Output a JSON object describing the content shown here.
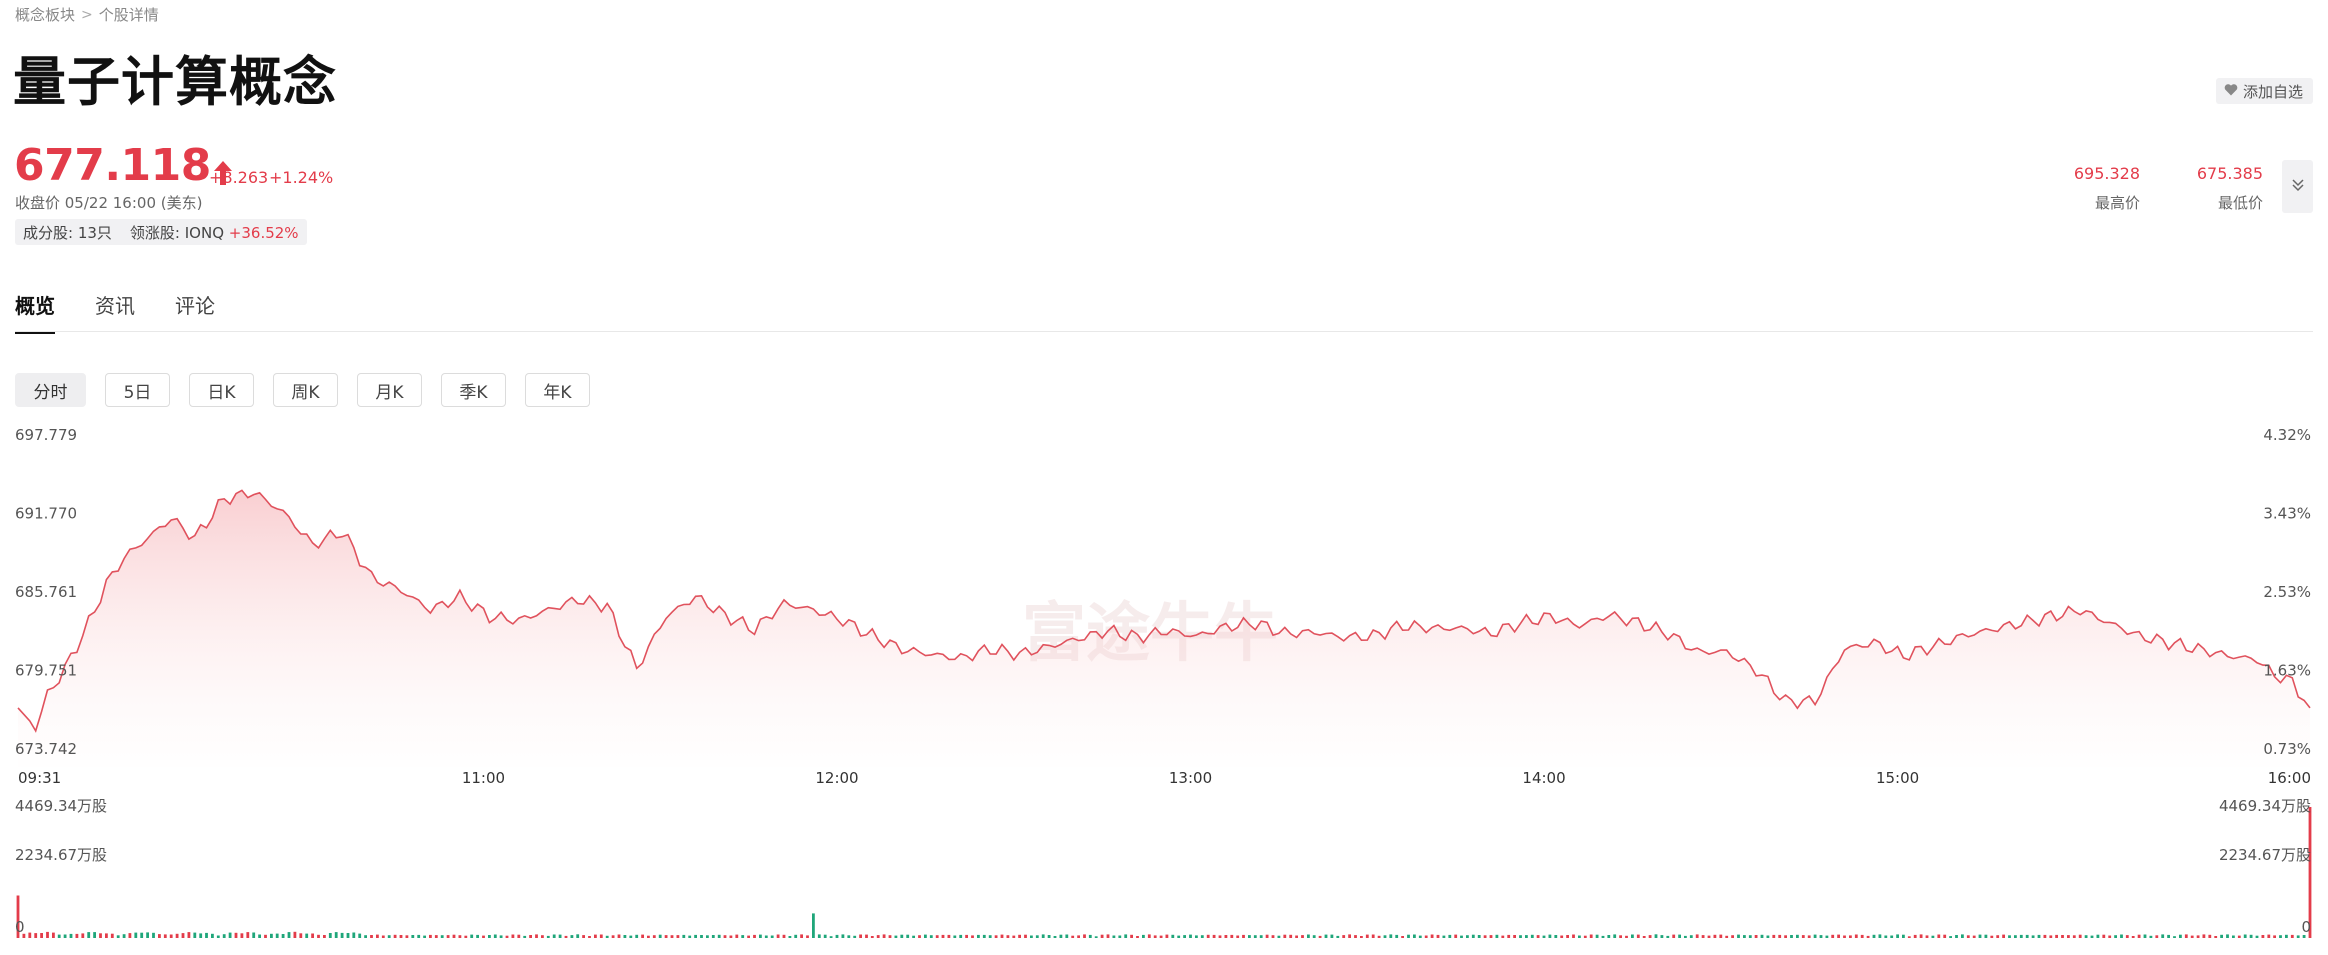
{
  "breadcrumb": {
    "parent": "概念板块",
    "current": "个股详情"
  },
  "header": {
    "title": "量子计算概念",
    "add_watchlist": "添加自选"
  },
  "quote": {
    "price": "677.118",
    "change": "+8.263",
    "change_pct": "+1.24%",
    "close_info": "收盘价 05/22 16:00 (美东)",
    "constituents": "成分股: 13只",
    "leader_label": "领涨股: IONQ",
    "leader_change": "+36.52%",
    "high_value": "695.328",
    "high_label": "最高价",
    "low_value": "675.385",
    "low_label": "最低价",
    "up_color": "#e33c4a",
    "down_color": "#1fa67a"
  },
  "tabs": [
    {
      "label": "概览",
      "active": true
    },
    {
      "label": "资讯",
      "active": false
    },
    {
      "label": "评论",
      "active": false
    }
  ],
  "periods": [
    {
      "label": "分时",
      "active": true
    },
    {
      "label": "5日",
      "active": false
    },
    {
      "label": "日K",
      "active": false
    },
    {
      "label": "周K",
      "active": false
    },
    {
      "label": "月K",
      "active": false
    },
    {
      "label": "季K",
      "active": false
    },
    {
      "label": "年K",
      "active": false
    }
  ],
  "watermark": "富途牛牛",
  "chart_data": [
    {
      "type": "area",
      "y_left_ticks": [
        "697.779",
        "691.770",
        "685.761",
        "679.751",
        "673.742"
      ],
      "y_right_ticks": [
        "4.32%",
        "3.43%",
        "2.53%",
        "1.63%",
        "0.73%"
      ],
      "x_ticks": [
        "09:31",
        "11:00",
        "12:00",
        "13:00",
        "14:00",
        "15:00",
        "16:00"
      ],
      "ylim": [
        673.742,
        697.779
      ],
      "x_minutes_range": [
        0,
        389
      ],
      "series": [
        {
          "x": [
            0,
            3,
            5,
            8,
            12,
            15,
            18,
            22,
            26,
            30,
            35,
            40,
            45,
            50,
            55,
            60,
            65,
            70,
            75,
            80,
            85,
            90,
            95,
            100,
            105,
            110,
            115,
            120,
            125,
            130,
            135,
            140,
            145,
            150,
            155,
            160,
            165,
            170,
            175,
            180,
            185,
            190,
            195,
            200,
            205,
            210,
            215,
            220,
            225,
            230,
            235,
            240,
            245,
            250,
            255,
            260,
            265,
            270,
            275,
            280,
            285,
            290,
            295,
            300,
            305,
            310,
            315,
            320,
            325,
            330,
            335,
            340,
            345,
            350,
            355,
            360,
            365,
            370,
            375,
            380,
            383,
            386,
            389
          ],
          "values": [
            677.5,
            676.0,
            678.5,
            680.5,
            684.0,
            687.0,
            689.0,
            690.5,
            692.0,
            690.5,
            693.5,
            694.0,
            692.5,
            690.0,
            691.0,
            687.5,
            686.5,
            685.0,
            686.0,
            684.5,
            684.2,
            685.0,
            685.8,
            685.3,
            680.5,
            684.5,
            686.0,
            684.6,
            683.5,
            685.5,
            685.0,
            684.2,
            683.0,
            682.0,
            681.6,
            681.3,
            682.0,
            681.6,
            682.2,
            682.8,
            683.4,
            682.9,
            683.4,
            683.0,
            683.7,
            684.0,
            683.2,
            683.3,
            682.9,
            683.0,
            683.8,
            683.6,
            683.6,
            683.2,
            684.0,
            684.5,
            683.8,
            684.6,
            684.0,
            683.2,
            681.8,
            681.8,
            680.4,
            678.0,
            678.0,
            682.0,
            682.5,
            681.5,
            682.2,
            683.0,
            683.5,
            684.0,
            684.5,
            685.0,
            684.0,
            683.0,
            682.5,
            682.0,
            681.5,
            681.2,
            680.0,
            679.5,
            677.5
          ]
        }
      ]
    },
    {
      "type": "bar",
      "y_ticks": [
        "4469.34万股",
        "2234.67万股",
        "0"
      ],
      "ylim": [
        0,
        4469.34
      ],
      "unit": "万股",
      "bars_count": 390,
      "highlights": [
        {
          "minute": 0,
          "value": 1450,
          "direction": "up"
        },
        {
          "minute": 135,
          "value": 840,
          "direction": "down"
        },
        {
          "minute": 389,
          "value": 4469.34,
          "direction": "up"
        }
      ]
    }
  ]
}
